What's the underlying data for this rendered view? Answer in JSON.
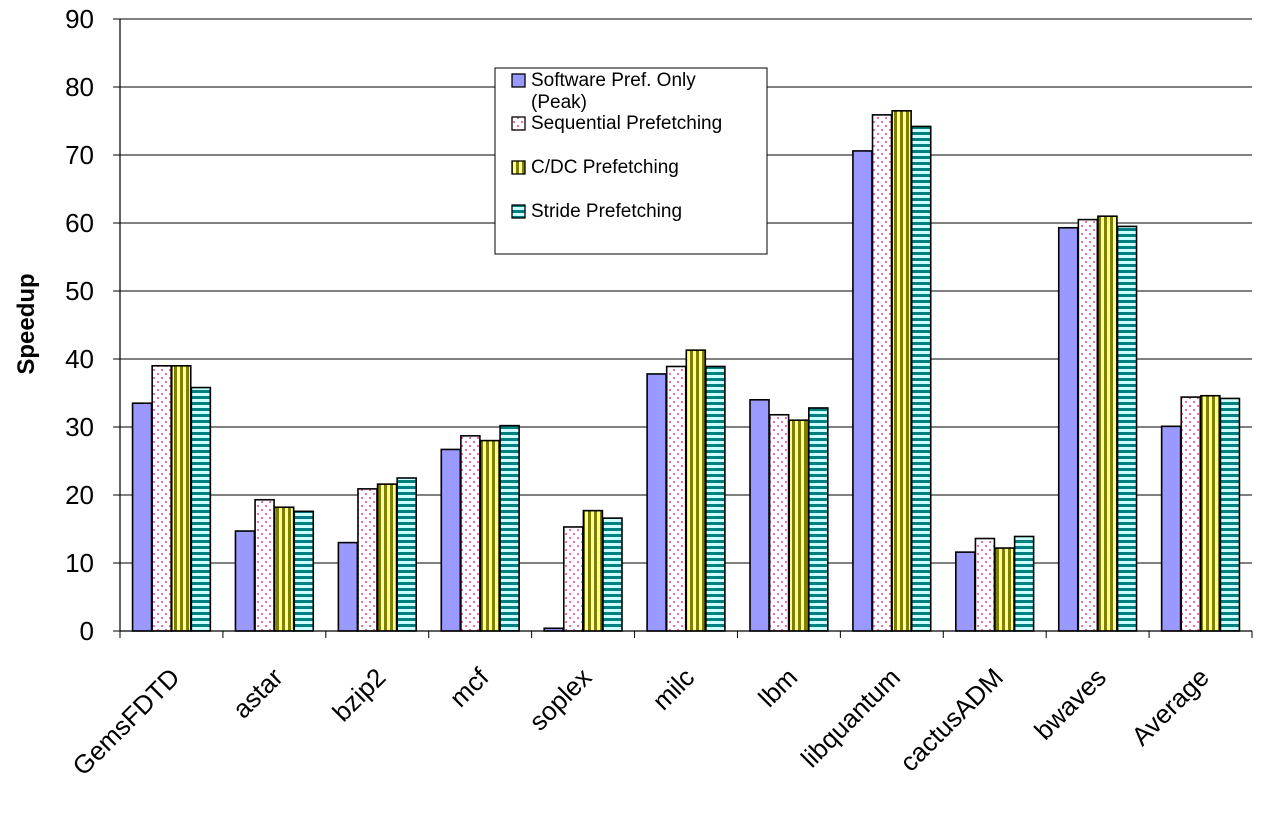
{
  "chart_data": {
    "type": "bar",
    "title": "",
    "xlabel": "",
    "ylabel": "Speedup",
    "ylim": [
      0,
      90
    ],
    "yticks": [
      "0",
      "10",
      "20",
      "30",
      "40",
      "50",
      "60",
      "70",
      "80",
      "90"
    ],
    "grid": true,
    "legend_position": "top-center",
    "categories": [
      "GemsFDTD",
      "astar",
      "bzip2",
      "mcf",
      "soplex",
      "milc",
      "lbm",
      "libquantum",
      "cactusADM",
      "bwaves",
      "Average"
    ],
    "series": [
      {
        "name": "Software Pref. Only (Peak)",
        "legend_lines": [
          "Software Pref. Only",
          "(Peak)"
        ],
        "pattern": "solid",
        "color": "#9999ff",
        "values": [
          33.5,
          14.7,
          13.0,
          26.7,
          0.4,
          37.8,
          34.0,
          70.6,
          11.6,
          59.3,
          30.1
        ]
      },
      {
        "name": "Sequential Prefetching",
        "legend_lines": [
          "Sequential Prefetching"
        ],
        "pattern": "dots",
        "color": "#ff80c0",
        "values": [
          39.0,
          19.3,
          20.9,
          28.7,
          15.3,
          38.9,
          31.8,
          75.9,
          13.6,
          60.5,
          34.4
        ]
      },
      {
        "name": "C/DC Prefetching",
        "legend_lines": [
          "C/DC Prefetching"
        ],
        "pattern": "vertical-stripes",
        "color": "#8a8a00",
        "values": [
          39.0,
          18.2,
          21.6,
          28.0,
          17.7,
          41.3,
          31.0,
          76.5,
          12.2,
          61.0,
          34.6
        ]
      },
      {
        "name": "Stride Prefetching",
        "legend_lines": [
          "Stride Prefetching"
        ],
        "pattern": "horizontal-stripes",
        "color": "#008a8a",
        "values": [
          35.8,
          17.6,
          22.5,
          30.2,
          16.6,
          38.9,
          32.8,
          74.2,
          13.9,
          59.5,
          34.2
        ]
      }
    ]
  }
}
